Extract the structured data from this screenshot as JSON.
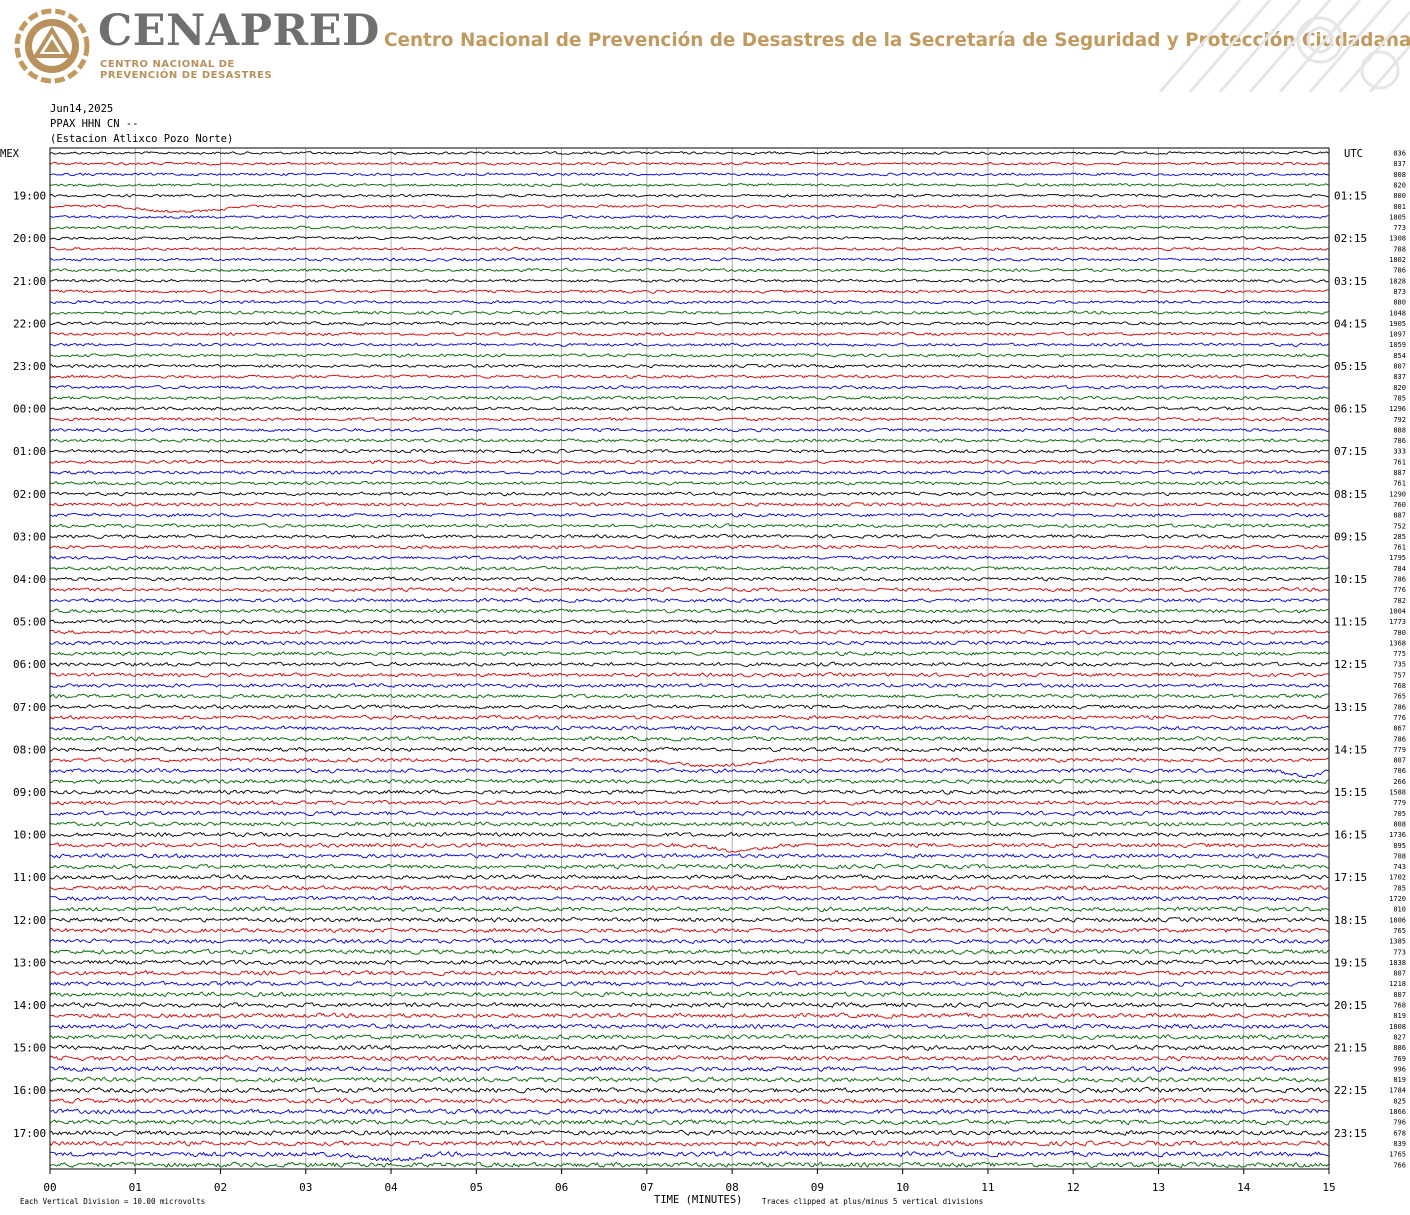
{
  "header": {
    "brand_name": "CENAPRED",
    "brand_sub_line1": "CENTRO NACIONAL DE",
    "brand_sub_line2": "PREVENCIÓN DE DESASTRES",
    "agency_title": "Centro Nacional de Prevención de Desastres de la Secretaría de Seguridad y Protección Ciudadana",
    "brand_color": "#c29a5f",
    "logo_icon": "cenapred-triangle-logo-icon"
  },
  "chart_data": {
    "type": "line",
    "subtype": "helicorder",
    "date": "Jun14,2025",
    "station_code": "PPAX HHN CN --",
    "station_name": "(Estacion Atlixco Pozo Norte)",
    "left_axis_label": "MEX",
    "right_axis_label": "UTC",
    "xlabel": "TIME (MINUTES)",
    "x_ticks": [
      "00",
      "01",
      "02",
      "03",
      "04",
      "05",
      "06",
      "07",
      "08",
      "09",
      "10",
      "11",
      "12",
      "13",
      "14",
      "15"
    ],
    "xlim": [
      0,
      15
    ],
    "minutes_per_line": 15,
    "lines_per_hour": 4,
    "trace_colors": [
      "#000000",
      "#d00000",
      "#0000d0",
      "#006400"
    ],
    "left_time_labels": [
      "19:00",
      "20:00",
      "21:00",
      "22:00",
      "23:00",
      "00:00",
      "01:00",
      "02:00",
      "03:00",
      "04:00",
      "05:00",
      "06:00",
      "07:00",
      "08:00",
      "09:00",
      "10:00",
      "11:00",
      "12:00",
      "13:00",
      "14:00",
      "15:00",
      "16:00",
      "17:00"
    ],
    "right_time_labels": [
      "01:15",
      "02:15",
      "03:15",
      "04:15",
      "05:15",
      "06:15",
      "07:15",
      "08:15",
      "09:15",
      "10:15",
      "11:15",
      "12:15",
      "13:15",
      "14:15",
      "15:15",
      "16:15",
      "17:15",
      "18:15",
      "19:15",
      "20:15",
      "21:15",
      "22:15",
      "23:15"
    ],
    "line_max_counts": [
      "836",
      "837",
      "808",
      "820",
      "800",
      "801",
      "1805",
      "773",
      "1308",
      "788",
      "1802",
      "786",
      "1828",
      "873",
      "880",
      "1048",
      "1905",
      "1097",
      "1059",
      "854",
      "807",
      "837",
      "820",
      "785",
      "1296",
      "792",
      "888",
      "786",
      "333",
      "761",
      "887",
      "761",
      "1290",
      "760",
      "887",
      "752",
      "285",
      "761",
      "1795",
      "784",
      "786",
      "776",
      "782",
      "1004",
      "1773",
      "780",
      "1368",
      "775",
      "735",
      "757",
      "768",
      "765",
      "786",
      "776",
      "867",
      "786",
      "779",
      "807",
      "706",
      "266",
      "1588",
      "779",
      "705",
      "808",
      "1736",
      "895",
      "708",
      "743",
      "1702",
      "785",
      "1720",
      "810",
      "1806",
      "765",
      "1385",
      "773",
      "1838",
      "807",
      "1218",
      "807",
      "768",
      "819",
      "1808",
      "827",
      "886",
      "769",
      "996",
      "819",
      "1784",
      "825",
      "1866",
      "796",
      "678",
      "839",
      "1765",
      "766"
    ],
    "events": [
      {
        "trace": 5,
        "start_min": 0.8,
        "end_min": 2.3,
        "shape": "dip"
      },
      {
        "trace": 57,
        "start_min": 7.0,
        "end_min": 8.6,
        "shape": "dip"
      },
      {
        "trace": 58,
        "start_min": 14.4,
        "end_min": 15.0,
        "shape": "dip"
      },
      {
        "trace": 65,
        "start_min": 7.6,
        "end_min": 8.6,
        "shape": "dip"
      },
      {
        "trace": 94,
        "start_min": 3.4,
        "end_min": 4.6,
        "shape": "dip"
      }
    ],
    "footer_left": "Each Vertical Division =   10.00 microvolts",
    "footer_right": "Traces clipped at plus/minus 5 vertical divisions"
  }
}
